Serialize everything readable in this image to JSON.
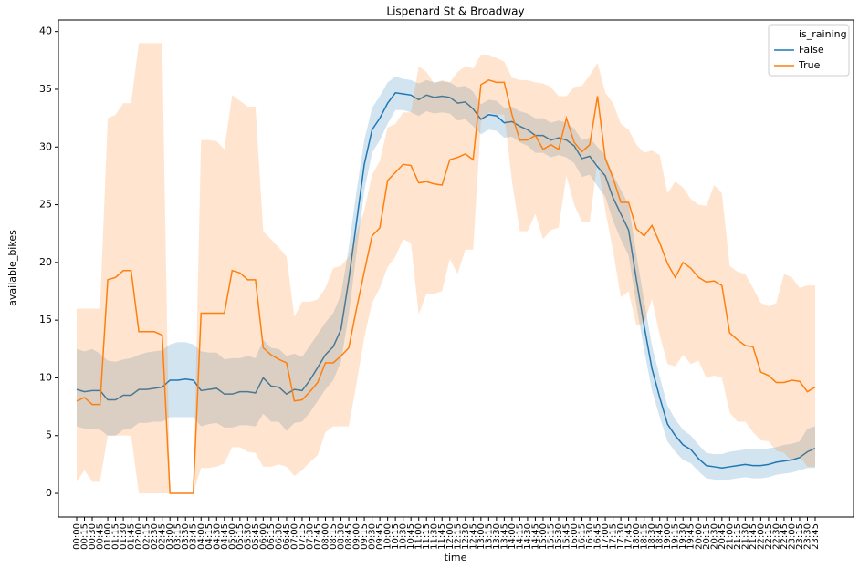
{
  "chart_data": {
    "type": "line",
    "title": "Lispenard St & Broadway",
    "x_label": "time",
    "y_label": "available_bikes",
    "legend_title": "is_raining",
    "legend": "upper right",
    "categories": [
      "00:00",
      "00:15",
      "00:30",
      "00:45",
      "01:00",
      "01:15",
      "01:30",
      "01:45",
      "02:00",
      "02:15",
      "02:30",
      "02:45",
      "03:00",
      "03:15",
      "03:30",
      "03:45",
      "04:00",
      "04:15",
      "04:30",
      "04:45",
      "05:00",
      "05:15",
      "05:30",
      "05:45",
      "06:00",
      "06:15",
      "06:30",
      "06:45",
      "07:00",
      "07:15",
      "07:30",
      "07:45",
      "08:00",
      "08:15",
      "08:30",
      "08:45",
      "09:00",
      "09:15",
      "09:30",
      "09:45",
      "10:00",
      "10:15",
      "10:30",
      "10:45",
      "11:00",
      "11:15",
      "11:30",
      "11:45",
      "12:00",
      "12:15",
      "12:30",
      "12:45",
      "13:00",
      "13:15",
      "13:30",
      "13:45",
      "14:00",
      "14:15",
      "14:30",
      "14:45",
      "15:00",
      "15:15",
      "15:30",
      "15:45",
      "16:00",
      "16:15",
      "16:30",
      "16:45",
      "17:00",
      "17:15",
      "17:30",
      "17:45",
      "18:00",
      "18:15",
      "18:30",
      "18:45",
      "19:00",
      "19:15",
      "19:30",
      "19:45",
      "20:00",
      "20:15",
      "20:30",
      "20:45",
      "21:00",
      "21:15",
      "21:30",
      "21:45",
      "22:00",
      "22:15",
      "22:30",
      "22:45",
      "23:00",
      "23:15",
      "23:30",
      "23:45"
    ],
    "series": [
      {
        "name": "False",
        "color": "#1f77b4",
        "values": [
          9.0,
          8.8,
          8.9,
          8.9,
          8.1,
          8.1,
          8.5,
          8.5,
          9.0,
          9.0,
          9.1,
          9.2,
          9.8,
          9.8,
          9.9,
          9.8,
          8.9,
          9.0,
          9.1,
          8.6,
          8.6,
          8.8,
          8.8,
          8.7,
          10.0,
          9.3,
          9.2,
          8.6,
          9.0,
          8.9,
          9.8,
          10.9,
          12.0,
          12.7,
          14.2,
          18.5,
          23.5,
          28.5,
          31.5,
          32.5,
          33.8,
          34.7,
          34.6,
          34.5,
          34.1,
          34.5,
          34.3,
          34.4,
          34.3,
          33.8,
          33.9,
          33.3,
          32.4,
          32.8,
          32.7,
          32.1,
          32.2,
          31.8,
          31.5,
          31.0,
          31.0,
          30.6,
          30.8,
          30.6,
          30.1,
          29.0,
          29.2,
          28.3,
          27.5,
          25.6,
          24.2,
          22.8,
          18.5,
          14.5,
          10.8,
          8.3,
          6.0,
          5.0,
          4.2,
          3.8,
          3.0,
          2.4,
          2.3,
          2.2,
          2.3,
          2.4,
          2.5,
          2.4,
          2.4,
          2.5,
          2.7,
          2.8,
          2.9,
          3.1,
          3.6,
          3.9
        ],
        "lower": [
          5.8,
          5.6,
          5.6,
          5.5,
          5.0,
          5.0,
          5.5,
          5.6,
          6.1,
          6.1,
          6.2,
          6.2,
          6.6,
          6.6,
          6.6,
          6.6,
          5.8,
          6.0,
          6.1,
          5.7,
          5.7,
          5.9,
          5.9,
          5.8,
          6.9,
          6.2,
          6.2,
          5.4,
          6.1,
          6.2,
          7.0,
          8.0,
          9.0,
          9.8,
          11.4,
          15.5,
          20.8,
          26.2,
          29.5,
          30.6,
          32.0,
          33.2,
          33.2,
          33.0,
          32.7,
          33.1,
          32.9,
          33.0,
          32.9,
          32.3,
          32.4,
          31.8,
          31.1,
          31.5,
          31.4,
          30.8,
          30.9,
          30.4,
          30.1,
          29.5,
          29.5,
          29.1,
          29.3,
          29.1,
          28.6,
          27.4,
          27.6,
          26.6,
          25.7,
          23.6,
          22.0,
          20.6,
          16.3,
          12.4,
          8.9,
          6.6,
          4.5,
          3.6,
          2.9,
          2.6,
          1.9,
          1.3,
          1.2,
          1.1,
          1.2,
          1.3,
          1.4,
          1.3,
          1.3,
          1.4,
          1.6,
          1.7,
          1.8,
          2.0,
          2.2,
          2.2
        ],
        "upper": [
          12.5,
          12.3,
          12.5,
          12.1,
          11.5,
          11.4,
          11.6,
          11.7,
          12.0,
          12.2,
          12.3,
          12.4,
          12.9,
          13.1,
          13.1,
          12.9,
          12.3,
          12.2,
          12.2,
          11.6,
          11.7,
          11.7,
          11.9,
          11.7,
          13.3,
          12.6,
          12.5,
          11.9,
          12.1,
          11.8,
          12.8,
          13.8,
          14.8,
          15.6,
          17.2,
          21.3,
          26.2,
          30.6,
          33.4,
          34.4,
          35.6,
          36.1,
          35.9,
          35.8,
          35.5,
          35.8,
          35.6,
          35.7,
          35.6,
          35.2,
          35.3,
          34.8,
          33.7,
          34.1,
          34.0,
          33.4,
          33.5,
          33.1,
          32.9,
          32.5,
          32.5,
          32.1,
          32.3,
          32.1,
          31.6,
          30.6,
          30.8,
          30.0,
          29.3,
          27.6,
          26.3,
          25.0,
          20.7,
          16.7,
          12.8,
          10.1,
          7.6,
          6.4,
          5.5,
          5.0,
          4.2,
          3.5,
          3.4,
          3.4,
          3.6,
          3.7,
          3.8,
          3.8,
          3.8,
          3.9,
          4.0,
          4.2,
          4.3,
          4.5,
          5.6,
          5.8
        ]
      },
      {
        "name": "True",
        "color": "#ff7f0e",
        "values": [
          8.0,
          8.3,
          7.7,
          7.7,
          18.5,
          18.7,
          19.3,
          19.3,
          14.0,
          14.0,
          14.0,
          13.7,
          0,
          0,
          0,
          0,
          15.6,
          15.6,
          15.6,
          15.6,
          19.3,
          19.1,
          18.5,
          18.5,
          12.6,
          12.0,
          11.6,
          11.3,
          8.0,
          8.1,
          8.8,
          9.6,
          11.3,
          11.3,
          11.9,
          12.6,
          16.0,
          19.2,
          22.3,
          23.0,
          27.1,
          27.8,
          28.5,
          28.4,
          26.9,
          27.0,
          26.8,
          26.7,
          28.9,
          29.1,
          29.4,
          28.9,
          35.4,
          35.8,
          35.6,
          35.6,
          32.8,
          30.6,
          30.6,
          31.0,
          29.8,
          30.2,
          29.8,
          32.5,
          30.4,
          29.6,
          30.2,
          34.4,
          29.0,
          27.3,
          25.2,
          25.2,
          22.9,
          22.3,
          23.2,
          21.7,
          19.9,
          18.7,
          20.0,
          19.5,
          18.7,
          18.3,
          18.4,
          18.0,
          13.9,
          13.3,
          12.8,
          12.7,
          10.5,
          10.2,
          9.6,
          9.6,
          9.8,
          9.7,
          8.8,
          9.2
        ],
        "lower": [
          1.0,
          2.0,
          1.0,
          1.0,
          5.0,
          5.0,
          5.0,
          5.0,
          0,
          0,
          0,
          0,
          0,
          0,
          0,
          0,
          2.2,
          2.2,
          2.3,
          2.6,
          4.0,
          4.0,
          3.6,
          3.5,
          2.3,
          2.3,
          2.5,
          2.3,
          1.5,
          2.0,
          2.7,
          3.3,
          5.3,
          5.8,
          5.8,
          5.8,
          9.5,
          13.5,
          16.5,
          17.8,
          19.6,
          20.5,
          22.0,
          21.7,
          15.5,
          17.3,
          17.3,
          17.5,
          20.3,
          19.0,
          21.1,
          21.1,
          32.2,
          33.0,
          32.8,
          32.8,
          27.0,
          22.7,
          22.7,
          24.2,
          22.0,
          22.8,
          23.0,
          27.5,
          25.0,
          23.5,
          23.5,
          28.8,
          24.5,
          21.0,
          17.0,
          17.5,
          14.5,
          14.8,
          16.8,
          13.7,
          11.2,
          11.0,
          12.0,
          11.2,
          11.5,
          10.0,
          10.2,
          10.0,
          7.0,
          6.2,
          6.2,
          5.3,
          4.6,
          4.5,
          3.7,
          3.5,
          2.8,
          3.2,
          2.3,
          2.3
        ],
        "upper": [
          16,
          16,
          16,
          16,
          32.5,
          32.8,
          33.8,
          33.8,
          39,
          39,
          39,
          39,
          0,
          0,
          0,
          0,
          30.6,
          30.6,
          30.5,
          29.8,
          34.5,
          34.0,
          33.5,
          33.5,
          22.7,
          22.0,
          21.3,
          20.5,
          15.3,
          16.6,
          16.6,
          16.8,
          17.8,
          19.5,
          19.7,
          20.5,
          22.5,
          24.5,
          27.6,
          28.8,
          31.7,
          32,
          33,
          33,
          37,
          36.5,
          35.5,
          35.8,
          35.6,
          36.5,
          37,
          36.8,
          38,
          38,
          37.7,
          37.4,
          36,
          35.8,
          35.8,
          35.6,
          35.5,
          35.2,
          34.4,
          34.4,
          35.2,
          35.3,
          36.2,
          37.3,
          34.7,
          33.8,
          32,
          31.5,
          30.2,
          29.5,
          29.7,
          29.3,
          26,
          27,
          26.5,
          25.5,
          25,
          24.9,
          26.7,
          26,
          19.7,
          19.2,
          19,
          17.8,
          16.5,
          16.2,
          16.5,
          19,
          18.7,
          17.8,
          18,
          18
        ]
      }
    ],
    "ylim": [
      -2.05,
      41.0
    ],
    "yticks": [
      0,
      5,
      10,
      15,
      20,
      25,
      30,
      35,
      40
    ]
  }
}
